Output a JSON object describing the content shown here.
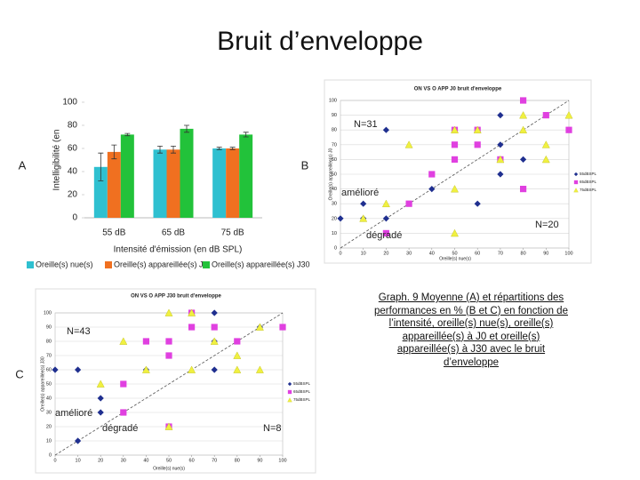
{
  "title": "Bruit d’enveloppe",
  "caption": "Graph. 9 Moyenne (A) et répartitions des performances en % (B et C) en fonction de l’intensité, oreille(s) nue(s), oreille(s) appareillée(s) à J0 et oreille(s) appareillée(s) à J30 avec le bruit d’enveloppe",
  "chart_data": [
    {
      "type": "bar",
      "panel": "A",
      "ylabel": "Intelligibilité (en",
      "xlabel": "Intensité d'émission (en dB SPL)",
      "categories": [
        "55 dB",
        "65 dB",
        "75 dB"
      ],
      "series": [
        {
          "name": "Oreille(s) nue(s)",
          "color": "#2fc0d0",
          "values": [
            44,
            59,
            60
          ],
          "errors": [
            12,
            3,
            1
          ]
        },
        {
          "name": "Oreille(s) appareillée(s) J0",
          "color": "#f07020",
          "values": [
            57,
            59,
            60
          ],
          "errors": [
            6,
            3,
            1
          ]
        },
        {
          "name": "Oreille(s) appareillée(s) J30",
          "color": "#22c23a",
          "values": [
            72,
            77,
            72
          ],
          "errors": [
            1,
            3,
            2
          ]
        }
      ],
      "ylim": [
        0,
        100
      ],
      "yticks": [
        0,
        20,
        40,
        60,
        80,
        100
      ],
      "grid": false,
      "legend": "bottom"
    },
    {
      "type": "scatter",
      "panel": "B",
      "title": "ON VS O APP J0 bruit d'enveloppe",
      "xlabel": "Oreille(s) nue(s)",
      "ylabel": "Oreille(s) appareillée(s) J0",
      "annotations": [
        "N=31",
        "amélioré",
        "N=20",
        "dégradé"
      ],
      "series": [
        {
          "name": "55dBSPL",
          "color": "#1f2f8f",
          "marker": "diamond",
          "x": [
            0,
            10,
            10,
            20,
            20,
            40,
            60,
            70,
            70,
            80,
            70
          ],
          "y": [
            20,
            20,
            30,
            20,
            80,
            40,
            30,
            70,
            90,
            60,
            50
          ]
        },
        {
          "name": "65dBSPL",
          "color": "#e040e0",
          "marker": "square",
          "x": [
            80,
            90,
            100,
            50,
            60,
            50,
            60,
            50,
            70,
            40,
            80,
            30,
            20
          ],
          "y": [
            100,
            90,
            80,
            80,
            80,
            70,
            70,
            60,
            60,
            50,
            40,
            30,
            10
          ]
        },
        {
          "name": "75dBSPL",
          "color": "#f0f040",
          "marker": "triangle",
          "x": [
            100,
            80,
            80,
            90,
            30,
            50,
            60,
            70,
            90,
            50,
            20,
            10,
            50
          ],
          "y": [
            90,
            90,
            80,
            70,
            70,
            80,
            80,
            60,
            60,
            40,
            30,
            20,
            10
          ]
        }
      ],
      "xlim": [
        0,
        100
      ],
      "xticks": [
        0,
        10,
        20,
        30,
        40,
        50,
        60,
        70,
        80,
        90,
        100
      ],
      "ylim": [
        0,
        100
      ],
      "yticks": [
        0,
        10,
        20,
        30,
        40,
        50,
        60,
        70,
        80,
        90,
        100
      ],
      "grid": true,
      "legend": "right"
    },
    {
      "type": "scatter",
      "panel": "C",
      "title": "ON VS O APP J30 bruit d'enveloppe",
      "xlabel": "Oreille(s) nue(s)",
      "ylabel": "Oreille(s) appareillée(s) J30",
      "annotations": [
        "N=43",
        "amélioré",
        "dégradé",
        "N=8"
      ],
      "series": [
        {
          "name": "55dBSPL",
          "color": "#1f2f8f",
          "marker": "diamond",
          "x": [
            0,
            10,
            10,
            20,
            20,
            40,
            50,
            50,
            60,
            70,
            70,
            70,
            90
          ],
          "y": [
            60,
            60,
            10,
            40,
            30,
            60,
            80,
            70,
            100,
            100,
            80,
            60,
            90
          ]
        },
        {
          "name": "65dBSPL",
          "color": "#e040e0",
          "marker": "square",
          "x": [
            60,
            60,
            70,
            30,
            40,
            50,
            50,
            80,
            100,
            30,
            50
          ],
          "y": [
            100,
            90,
            90,
            50,
            80,
            80,
            70,
            80,
            90,
            30,
            20
          ]
        },
        {
          "name": "75dBSPL",
          "color": "#f0f040",
          "marker": "triangle",
          "x": [
            50,
            60,
            30,
            40,
            60,
            80,
            90,
            80,
            20,
            50,
            90,
            70
          ],
          "y": [
            100,
            100,
            80,
            60,
            60,
            60,
            60,
            70,
            50,
            20,
            90,
            80
          ]
        }
      ],
      "xlim": [
        0,
        100
      ],
      "xticks": [
        0,
        10,
        20,
        30,
        40,
        50,
        60,
        70,
        80,
        90,
        100
      ],
      "ylim": [
        0,
        100
      ],
      "yticks": [
        0,
        10,
        20,
        30,
        40,
        50,
        60,
        70,
        80,
        90,
        100
      ],
      "grid": true,
      "legend": "right"
    }
  ]
}
